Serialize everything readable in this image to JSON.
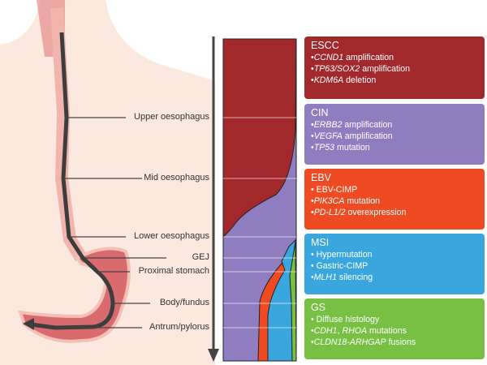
{
  "sites": [
    {
      "label": "Upper oesophagus"
    },
    {
      "label": "Mid oesophagus"
    },
    {
      "label": "Lower oesophagus"
    },
    {
      "label": "GEJ"
    },
    {
      "label": "Proximal stomach"
    },
    {
      "label": "Body/fundus"
    },
    {
      "label": "Antrum/pylorus"
    }
  ],
  "subtypes": [
    {
      "name": "ESCC",
      "color": "#a1282b",
      "items": [
        [
          "CCND1",
          " amplification"
        ],
        [
          "TP63/SOX2",
          " amplification"
        ],
        [
          "KDM6A",
          " deletion"
        ]
      ]
    },
    {
      "name": "CIN",
      "color": "#8f7dbf",
      "items": [
        [
          "ERBB2",
          " amplification"
        ],
        [
          "VEGFA",
          " amplification"
        ],
        [
          "TP53",
          " mutation"
        ]
      ]
    },
    {
      "name": "EBV",
      "color": "#ee4b23",
      "items": [
        [
          "",
          "EBV-CIMP"
        ],
        [
          "PIK3CA",
          " mutation"
        ],
        [
          "PD-L1/2",
          " overexpression"
        ]
      ]
    },
    {
      "name": "MSI",
      "color": "#3aa6de",
      "items": [
        [
          "",
          "Hypermutation"
        ],
        [
          "",
          "Gastric-CIMP"
        ],
        [
          "MLH1",
          " silencing"
        ]
      ]
    },
    {
      "name": "GS",
      "color": "#77c044",
      "items": [
        [
          "",
          "Diffuse histology"
        ],
        [
          "CDH1",
          ", "
        ],
        [
          "CLDN18-ARHGAP",
          " fusions"
        ]
      ]
    }
  ],
  "gs_item2_extra": [
    "RHOA",
    " mutations"
  ]
}
